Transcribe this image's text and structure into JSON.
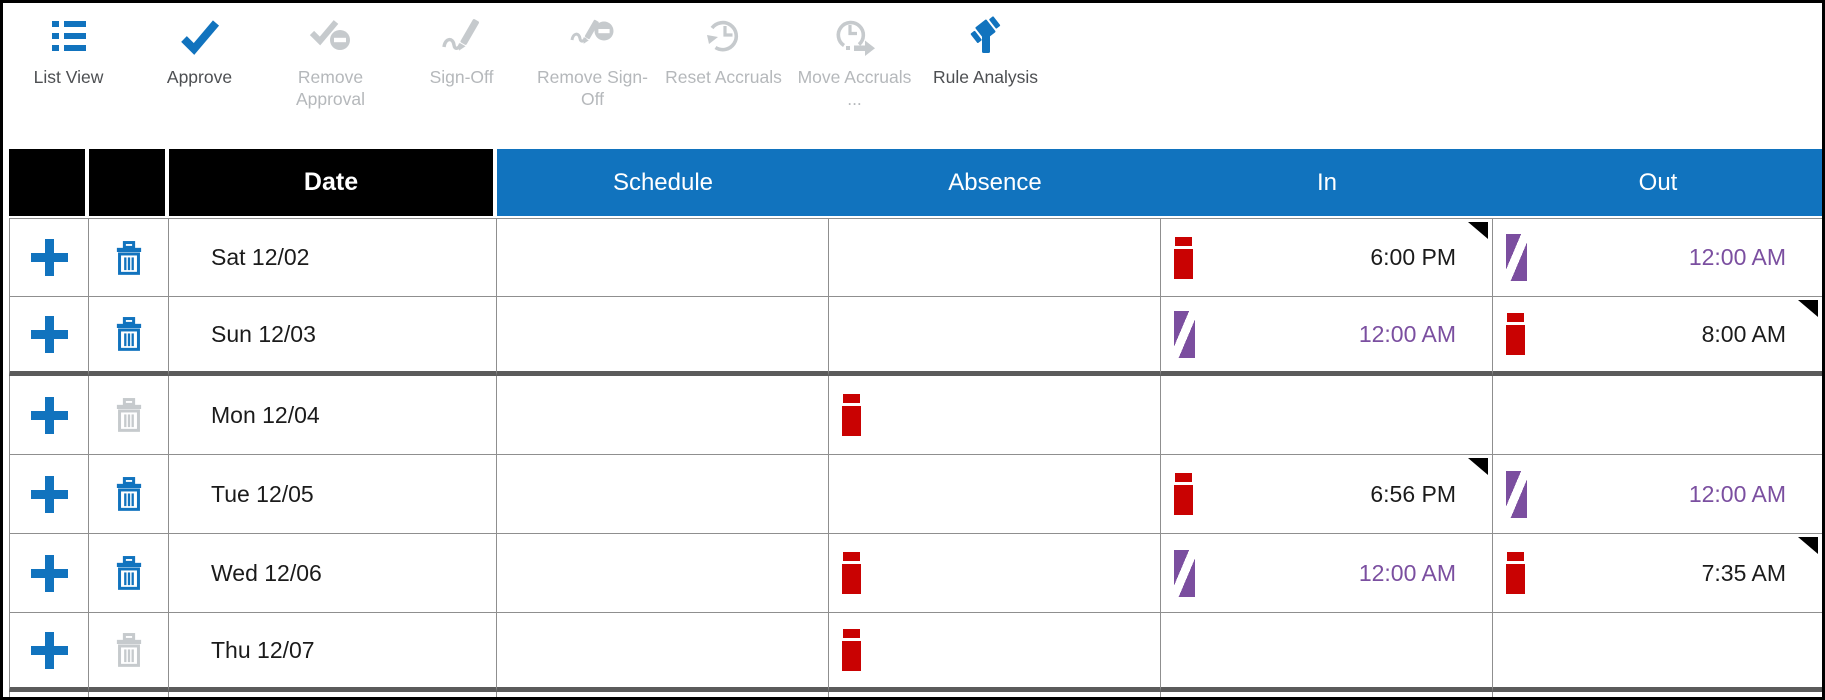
{
  "toolbar": {
    "items": [
      {
        "label": "List View",
        "icon": "list-view-icon",
        "enabled": true
      },
      {
        "label": "Approve",
        "icon": "approve-icon",
        "enabled": true
      },
      {
        "label": "Remove Approval",
        "icon": "remove-approval-icon",
        "enabled": false
      },
      {
        "label": "Sign-Off",
        "icon": "sign-off-icon",
        "enabled": false
      },
      {
        "label": "Remove Sign-Off",
        "icon": "remove-sign-off-icon",
        "enabled": false
      },
      {
        "label": "Reset Accruals",
        "icon": "reset-accruals-icon",
        "enabled": false
      },
      {
        "label": "Move Accruals ...",
        "icon": "move-accruals-icon",
        "enabled": false
      },
      {
        "label": "Rule Analysis",
        "icon": "rule-analysis-icon",
        "enabled": true
      }
    ]
  },
  "table": {
    "columns": [
      {
        "label": "",
        "style": "black"
      },
      {
        "label": "",
        "style": "black"
      },
      {
        "label": "Date",
        "style": "black"
      },
      {
        "label": "Schedule",
        "style": "blue"
      },
      {
        "label": "Absence",
        "style": "blue"
      },
      {
        "label": "In",
        "style": "blue"
      },
      {
        "label": "Out",
        "style": "blue"
      }
    ],
    "rows": [
      {
        "date": "Sat 12/02",
        "add_enabled": true,
        "delete_enabled": true,
        "schedule": "",
        "absence_marker": null,
        "in": {
          "time": "6:00 PM",
          "marker": "exception",
          "note_corner": true
        },
        "out": {
          "time": "12:00 AM",
          "marker": "calculated",
          "note_corner": false
        },
        "week_separator": false
      },
      {
        "date": "Sun 12/03",
        "add_enabled": true,
        "delete_enabled": true,
        "schedule": "",
        "absence_marker": null,
        "in": {
          "time": "12:00 AM",
          "marker": "calculated",
          "note_corner": false
        },
        "out": {
          "time": "8:00 AM",
          "marker": "exception",
          "note_corner": true
        },
        "week_separator": true
      },
      {
        "date": "Mon 12/04",
        "add_enabled": true,
        "delete_enabled": false,
        "schedule": "",
        "absence_marker": "exception",
        "in": null,
        "out": null,
        "week_separator": false
      },
      {
        "date": "Tue 12/05",
        "add_enabled": true,
        "delete_enabled": true,
        "schedule": "",
        "absence_marker": null,
        "in": {
          "time": "6:56 PM",
          "marker": "exception",
          "note_corner": true
        },
        "out": {
          "time": "12:00 AM",
          "marker": "calculated",
          "note_corner": false
        },
        "week_separator": false
      },
      {
        "date": "Wed 12/06",
        "add_enabled": true,
        "delete_enabled": true,
        "schedule": "",
        "absence_marker": "exception",
        "in": {
          "time": "12:00 AM",
          "marker": "calculated",
          "note_corner": false
        },
        "out": {
          "time": "7:35 AM",
          "marker": "exception",
          "note_corner": true
        },
        "week_separator": false
      },
      {
        "date": "Thu 12/07",
        "add_enabled": true,
        "delete_enabled": false,
        "schedule": "",
        "absence_marker": "exception",
        "in": null,
        "out": null,
        "week_separator": true
      }
    ]
  },
  "colors": {
    "accent_blue": "#1173BE",
    "header_blue": "#1173BE",
    "header_black": "#000000",
    "exception_red": "#C90202",
    "calculated_purple": "#7B4E9F",
    "disabled_gray": "#C6CACD",
    "grid_border_gray": "#8F8F8F",
    "week_separator_gray": "#5B5B5B"
  }
}
